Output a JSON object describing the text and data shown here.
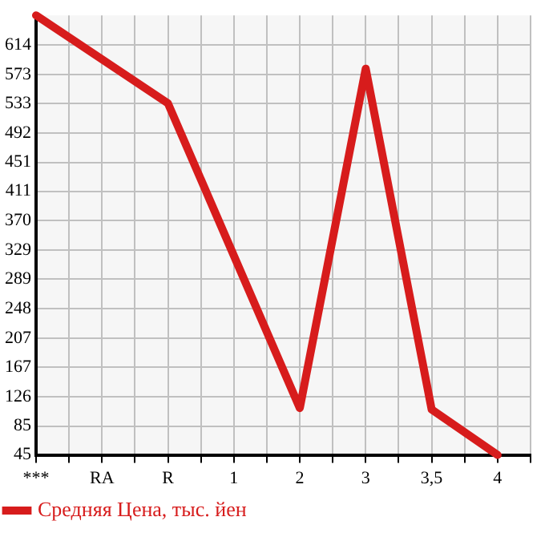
{
  "chart_data": {
    "type": "line",
    "categories": [
      "***",
      "RA",
      "R",
      "1",
      "2",
      "3",
      "3,5",
      "4"
    ],
    "series": [
      {
        "name": "Средняя Цена, тыс. йен",
        "color": "#d71c1c",
        "values": [
          655,
          null,
          533,
          null,
          110,
          581,
          108,
          45
        ]
      }
    ],
    "ylim": [
      45,
      655
    ],
    "yticks": [
      45,
      85,
      126,
      167,
      207,
      248,
      289,
      329,
      370,
      411,
      451,
      492,
      533,
      573,
      614
    ],
    "grid": true,
    "legend": "bottom",
    "marker": "none"
  }
}
